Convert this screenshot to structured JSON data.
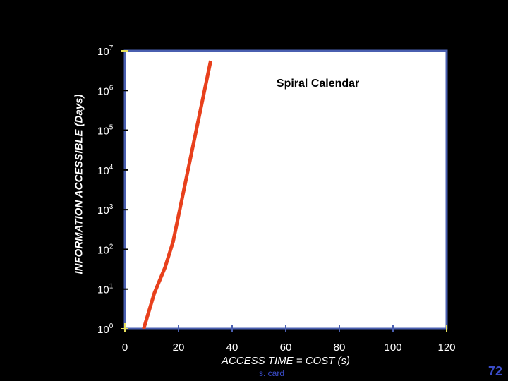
{
  "chart_data": {
    "type": "line",
    "xlabel": "ACCESS TIME = COST (s)",
    "ylabel": "INFORMATION ACCESSIBLE (Days)",
    "x_ticks": [
      0,
      20,
      40,
      60,
      80,
      100,
      120
    ],
    "y_ticks": [
      {
        "base": "10",
        "exp": "0"
      },
      {
        "base": "10",
        "exp": "1"
      },
      {
        "base": "10",
        "exp": "2"
      },
      {
        "base": "10",
        "exp": "3"
      },
      {
        "base": "10",
        "exp": "4"
      },
      {
        "base": "10",
        "exp": "5"
      },
      {
        "base": "10",
        "exp": "6"
      },
      {
        "base": "10",
        "exp": "7"
      }
    ],
    "xlim": [
      0,
      120
    ],
    "ylim_log10": [
      0,
      7
    ],
    "y_scale": "log",
    "grid": false,
    "series": [
      {
        "name": "Spiral Calendar",
        "color": "#e8401c",
        "points": [
          {
            "x": 7,
            "y_log10": 0.0
          },
          {
            "x": 11,
            "y_log10": 0.9
          },
          {
            "x": 15,
            "y_log10": 1.55
          },
          {
            "x": 18,
            "y_log10": 2.2
          },
          {
            "x": 32,
            "y_log10": 6.75
          }
        ]
      }
    ],
    "annotations": [
      {
        "text": "Spiral Calendar",
        "x": 72,
        "y_log10": 6.2
      }
    ]
  },
  "footer": {
    "credit": "s. card",
    "slide_number": "72"
  },
  "colors": {
    "background": "#000000",
    "plot_area": "#ffffff",
    "frame": "#4a5fb0",
    "axis": "#e8e05a",
    "tick_label": "#ffffff",
    "footer_text": "#3a4cc8"
  }
}
